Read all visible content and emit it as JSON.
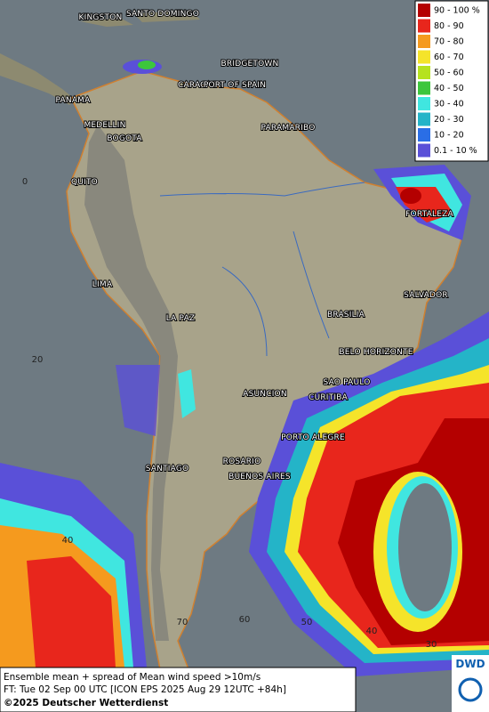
{
  "cities": [
    "KINGSTON",
    "SANTO DOMINGO",
    "BRIDGETOWN",
    "CARACAS",
    "PORT OF SPAIN",
    "PANAMA",
    "MEDELLIN",
    "BOGOTA",
    "PARAMARIBO",
    "QUITO",
    "FORTALEZA",
    "LIMA",
    "SALVADOR",
    "BRASILIA",
    "LA PAZ",
    "BELO HORIZONTE",
    "ASUNCION",
    "SAO PAULO",
    "CURITIBA",
    "PORTO ALEGRE",
    "SANTIAGO",
    "ROSARIO",
    "BUENOS AIRES"
  ],
  "graticule": {
    "lat_labels": [
      "0",
      "20",
      "40"
    ],
    "lon_labels": [
      "70",
      "60",
      "50",
      "40",
      "30"
    ]
  },
  "legend": [
    {
      "label": "90 - 100 %",
      "color": "#b40000"
    },
    {
      "label": "80 - 90",
      "color": "#e8261c"
    },
    {
      "label": "70 - 80",
      "color": "#f59a1e"
    },
    {
      "label": "60 - 70",
      "color": "#f5e42a"
    },
    {
      "label": "50 - 60",
      "color": "#b6e21f"
    },
    {
      "label": "40 - 50",
      "color": "#3cc63c"
    },
    {
      "label": "30 - 40",
      "color": "#40e6e0"
    },
    {
      "label": "20 - 30",
      "color": "#24b4c8"
    },
    {
      "label": "10 - 20",
      "color": "#2a6ee6"
    },
    {
      "label": "0.1 - 10 %",
      "color": "#5a50d8"
    }
  ],
  "caption": {
    "line1": "Ensemble mean + spread of Mean wind speed >10m/s",
    "line2": "FT: Tue 02 Sep 00 UTC [ICON EPS 2025 Aug 29 12UTC +84h]",
    "line3": "©2025 Deutscher Wetterdienst"
  },
  "logo": "DWD"
}
